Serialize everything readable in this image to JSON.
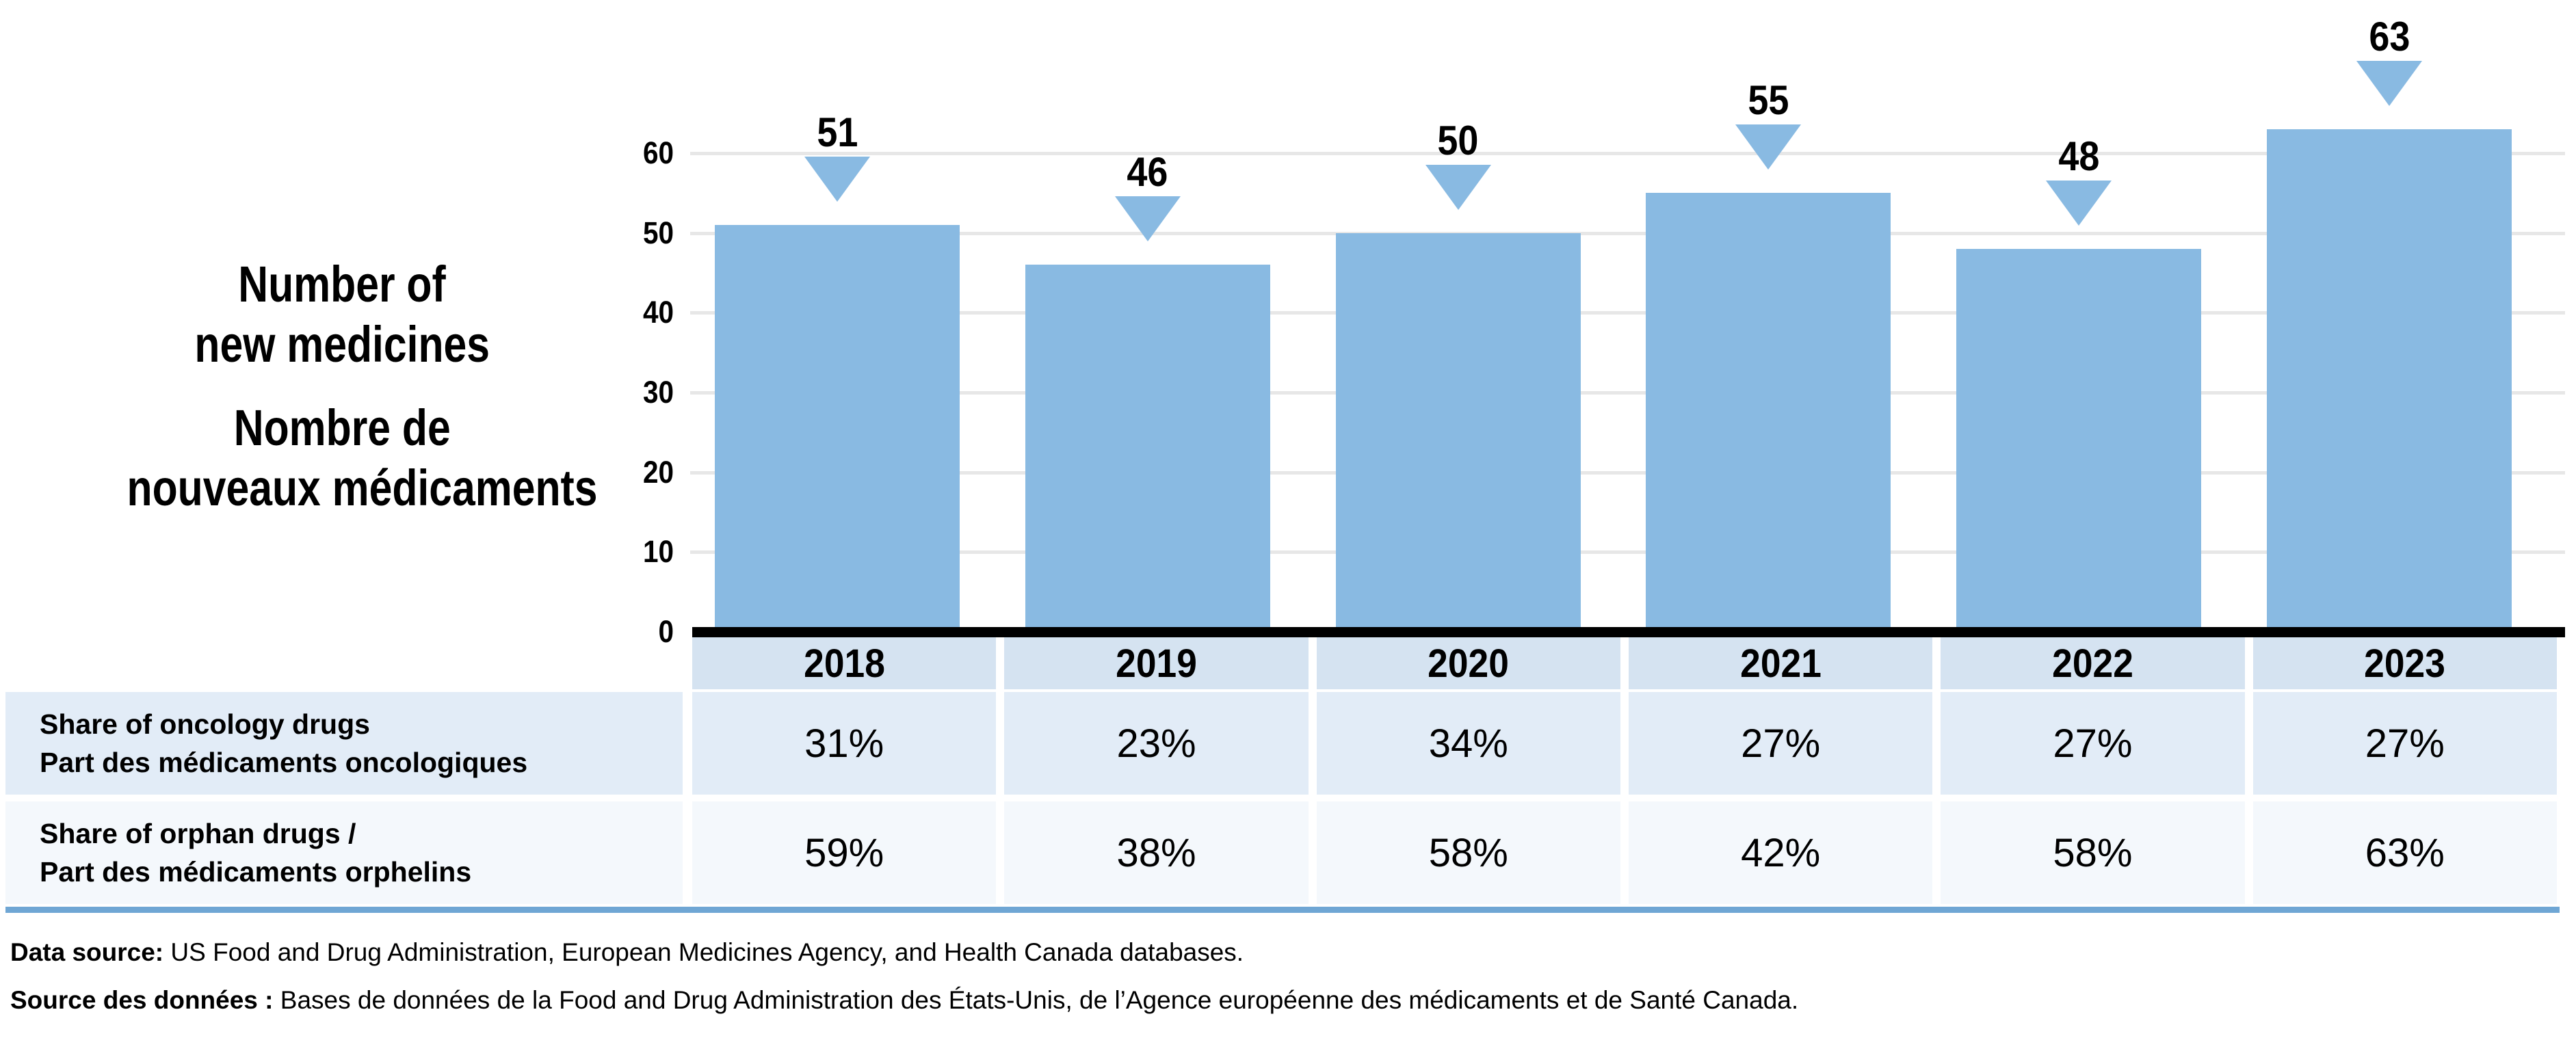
{
  "title": {
    "line1": "Number of",
    "line2": "new medicines",
    "line3": "Nombre de",
    "line4": "nouveaux médicaments"
  },
  "chart_data": {
    "type": "bar",
    "title": "Number of new medicines / Nombre de nouveaux médicaments",
    "categories": [
      "2018",
      "2019",
      "2020",
      "2021",
      "2022",
      "2023"
    ],
    "values": [
      51,
      46,
      50,
      55,
      48,
      63
    ],
    "bar_labels": [
      "51",
      "46",
      "50",
      "55",
      "48",
      "63"
    ],
    "xlabel": "",
    "ylabel": "Number of new medicines / Nombre de nouveaux médicaments",
    "ylim": [
      0,
      60
    ],
    "yticks": [
      0,
      10,
      20,
      30,
      40,
      50,
      60
    ],
    "grid": true,
    "legend_position": "none",
    "marker": "down-triangle above each bar",
    "series": [
      {
        "name": "Number of new medicines",
        "values": [
          51,
          46,
          50,
          55,
          48,
          63
        ]
      },
      {
        "name": "Share of oncology drugs / Part des médicaments oncologiques",
        "values": [
          "31%",
          "23%",
          "34%",
          "27%",
          "27%",
          "27%"
        ]
      },
      {
        "name": "Share of orphan drugs / Part des médicaments orphelins",
        "values": [
          "59%",
          "38%",
          "58%",
          "42%",
          "58%",
          "63%"
        ]
      }
    ]
  },
  "table": {
    "rows": [
      {
        "label_line1": "Share of oncology drugs",
        "label_line2": "Part des médicaments oncologiques",
        "values": [
          "31%",
          "23%",
          "34%",
          "27%",
          "27%",
          "27%"
        ]
      },
      {
        "label_line1": "Share of orphan drugs /",
        "label_line2": "Part des médicaments orphelins",
        "values": [
          "59%",
          "38%",
          "58%",
          "42%",
          "58%",
          "63%"
        ]
      }
    ]
  },
  "footer": {
    "line1_bold": "Data source:",
    "line1_rest": " US Food and Drug Administration, European Medicines Agency, and Health Canada databases.",
    "line2_bold": "Source des données :",
    "line2_rest": " Bases de données de la Food and Drug Administration des États-Unis, de l’Agence européenne des médicaments et de Santé Canada."
  },
  "colors": {
    "bar": "#89BAE2",
    "marker": "#89BAE2",
    "year_band": "#D5E3F1",
    "row1_bg": "#E2ECF7",
    "row2_bg": "#F4F8FC",
    "bottom_rule": "#6FA6D4",
    "gridline": "#E7E7E7",
    "axis_line": "#000000"
  }
}
